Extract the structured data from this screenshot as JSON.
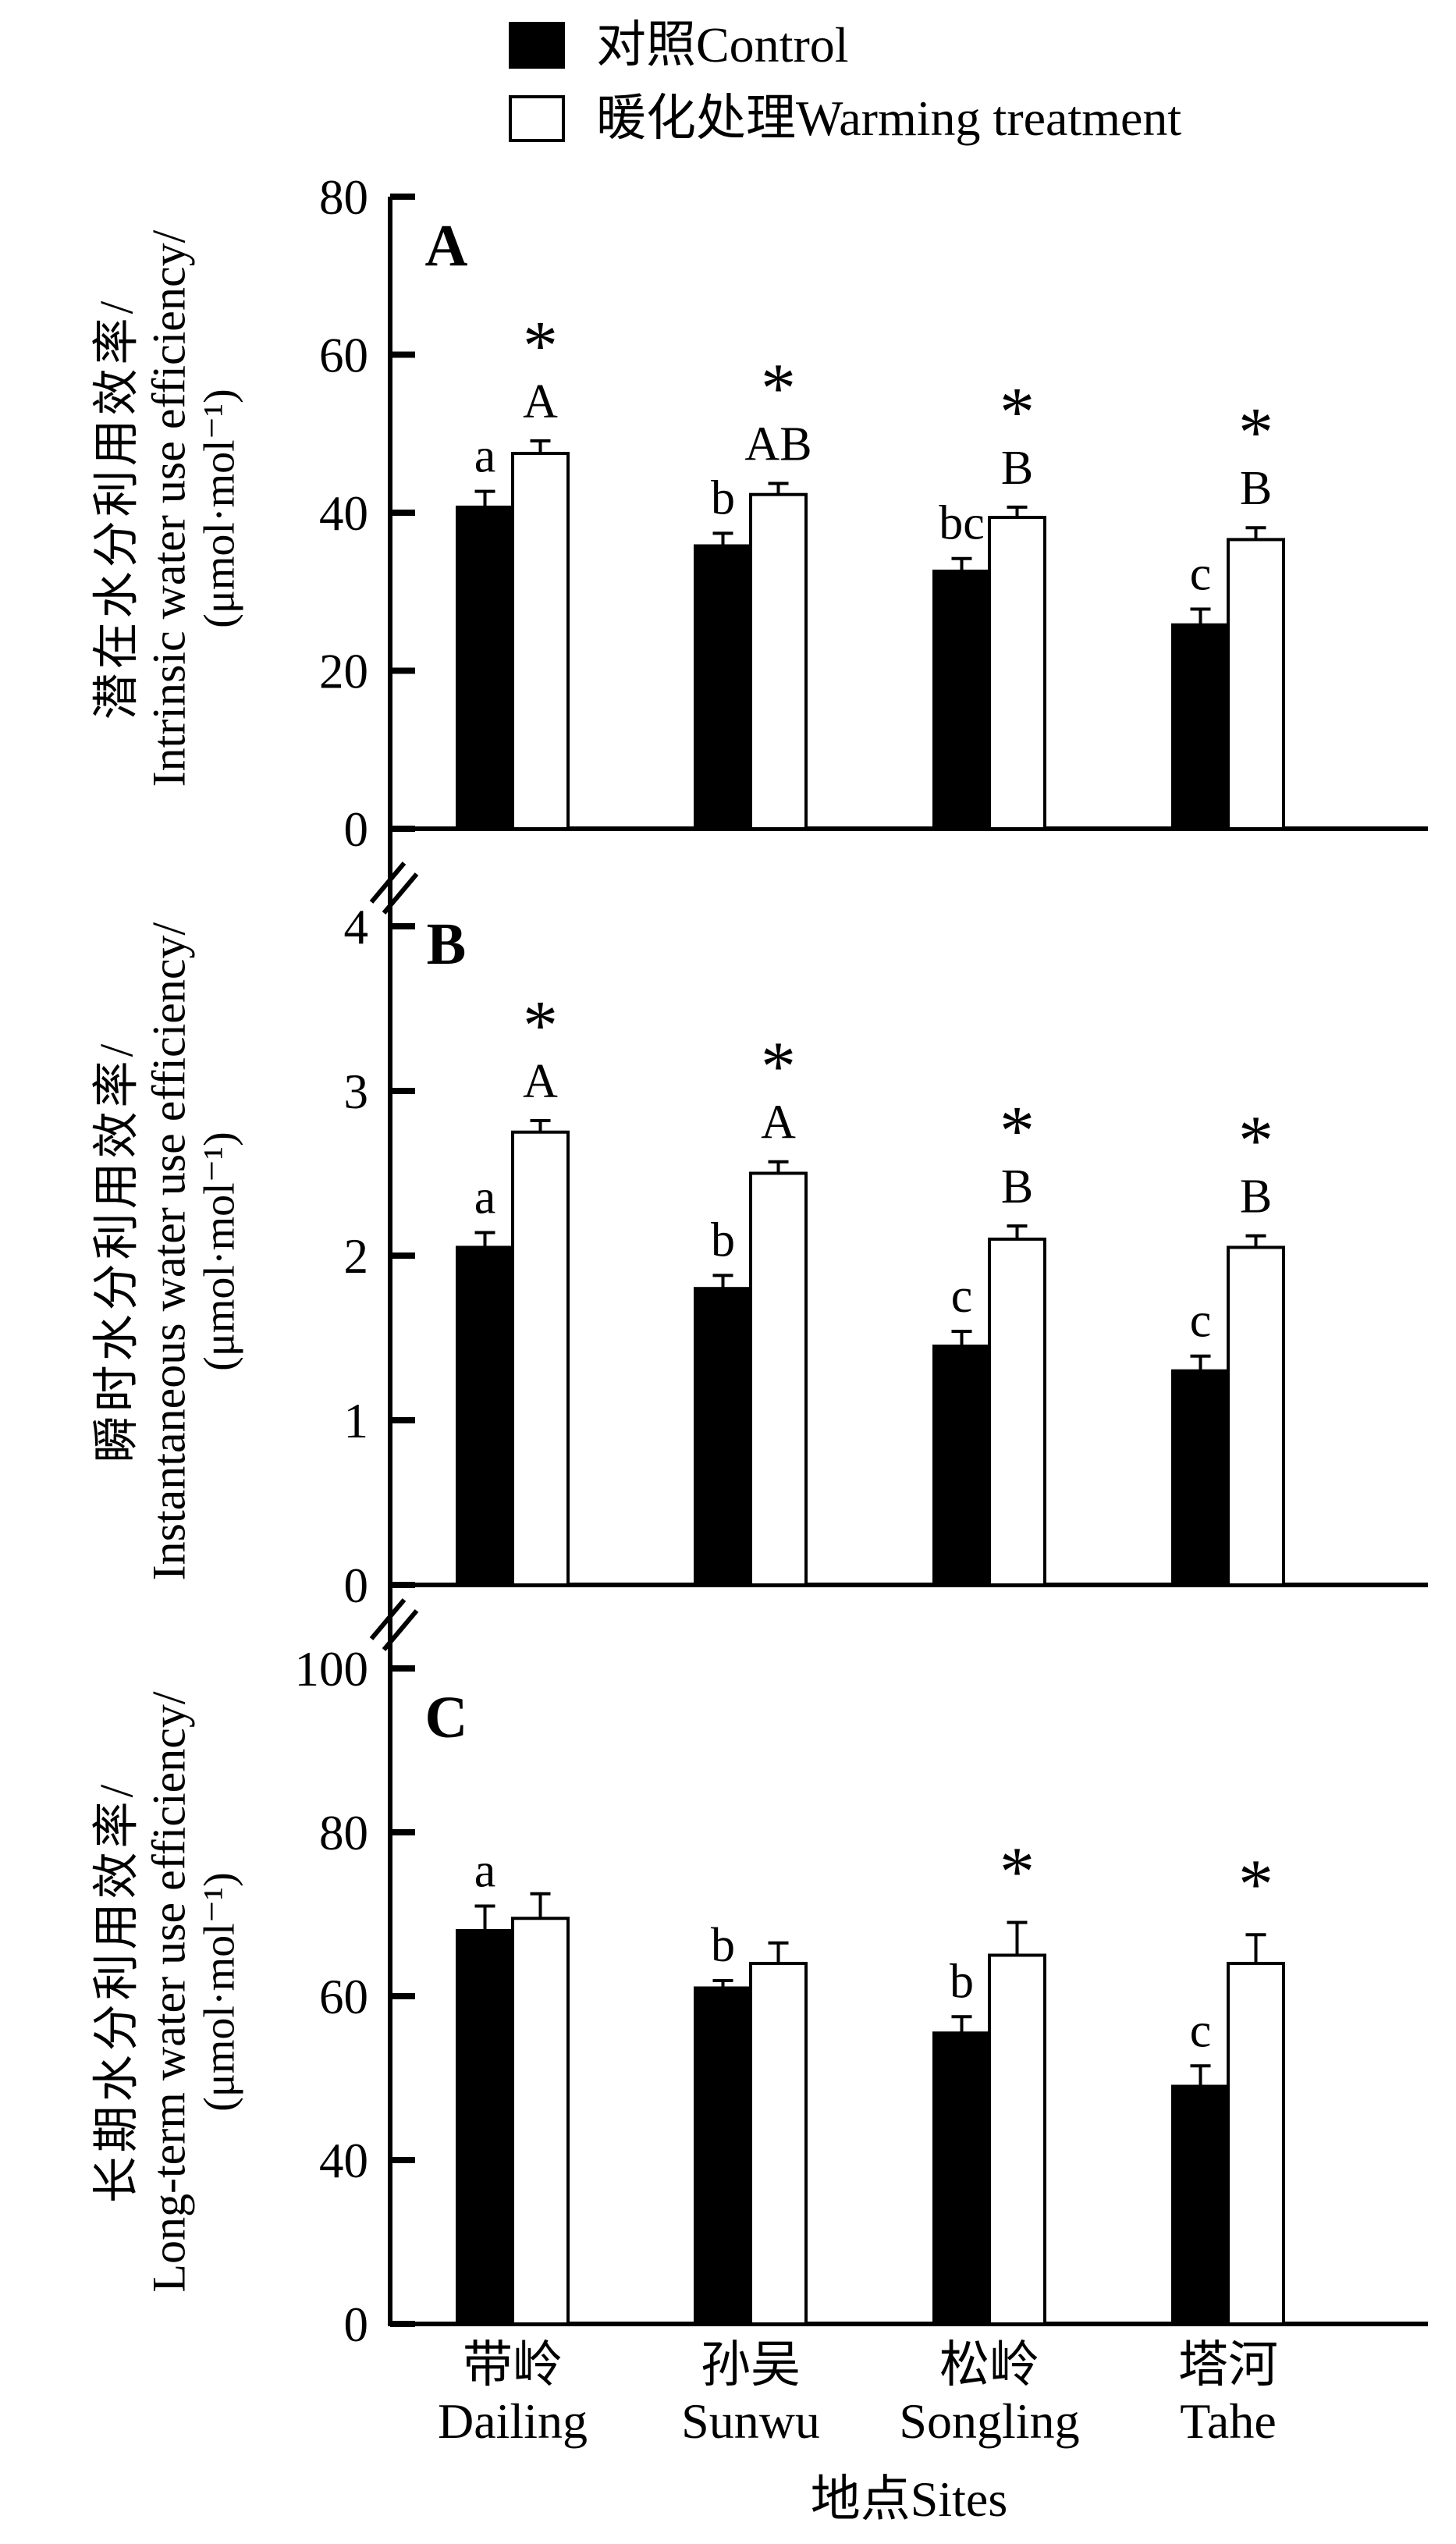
{
  "legend": {
    "items": [
      {
        "label": "对照Control",
        "swatch": "black-filled-square",
        "color": "#000000"
      },
      {
        "label": "暖化处理Warming treatment",
        "swatch": "white-open-square",
        "color": "#ffffff"
      }
    ]
  },
  "x_axis": {
    "title": "地点Sites",
    "sites": [
      {
        "zh": "带岭",
        "en": "Dailing"
      },
      {
        "zh": "孙吴",
        "en": "Sunwu"
      },
      {
        "zh": "松岭",
        "en": "Songling"
      },
      {
        "zh": "塔河",
        "en": "Tahe"
      }
    ]
  },
  "chart_data": [
    {
      "type": "bar",
      "panel_label": "A",
      "ylabel_zh": "潜在水分利用效率/",
      "ylabel_en": "Intrinsic water use efficiency/",
      "ylabel_unit": "(μmol·mol⁻¹)",
      "categories": [
        "带岭 Dailing",
        "孙吴 Sunwu",
        "松岭 Songling",
        "塔河 Tahe"
      ],
      "yticks": [
        0,
        20,
        40,
        60,
        80
      ],
      "ylim": [
        0,
        80
      ],
      "axis_break": false,
      "grid": false,
      "series": [
        {
          "name": "对照Control",
          "values": [
            40.7,
            35.8,
            32.6,
            25.8
          ],
          "errors": [
            2.0,
            1.6,
            1.6,
            2.0
          ],
          "letters": [
            "a",
            "b",
            "bc",
            "c"
          ],
          "asterisks": [
            false,
            false,
            false,
            false
          ]
        },
        {
          "name": "暖化处理Warming treatment",
          "values": [
            47.5,
            42.3,
            39.4,
            36.6
          ],
          "errors": [
            1.6,
            1.4,
            1.3,
            1.5
          ],
          "letters": [
            "A",
            "AB",
            "B",
            "B"
          ],
          "asterisks": [
            true,
            true,
            true,
            true
          ]
        }
      ]
    },
    {
      "type": "bar",
      "panel_label": "B",
      "ylabel_zh": "瞬时水分利用效率/",
      "ylabel_en": "Instantaneous water use efficiency/",
      "ylabel_unit": "(μmol·mol⁻¹)",
      "categories": [
        "带岭 Dailing",
        "孙吴 Sunwu",
        "松岭 Songling",
        "塔河 Tahe"
      ],
      "yticks": [
        0,
        1,
        2,
        3,
        4
      ],
      "ylim": [
        0,
        4
      ],
      "axis_break": true,
      "grid": false,
      "series": [
        {
          "name": "对照Control",
          "values": [
            2.05,
            1.8,
            1.45,
            1.3
          ],
          "errors": [
            0.09,
            0.08,
            0.09,
            0.09
          ],
          "letters": [
            "a",
            "b",
            "c",
            "c"
          ],
          "asterisks": [
            false,
            false,
            false,
            false
          ]
        },
        {
          "name": "暖化处理Warming treatment",
          "values": [
            2.75,
            2.5,
            2.1,
            2.05
          ],
          "errors": [
            0.07,
            0.07,
            0.08,
            0.07
          ],
          "letters": [
            "A",
            "A",
            "B",
            "B"
          ],
          "asterisks": [
            true,
            true,
            true,
            true
          ]
        }
      ]
    },
    {
      "type": "bar",
      "panel_label": "C",
      "ylabel_zh": "长期水分利用效率/",
      "ylabel_en": "Long-term water use efficiency/",
      "ylabel_unit": "(μmol·mol⁻¹)",
      "categories": [
        "带岭 Dailing",
        "孙吴 Sunwu",
        "松岭 Songling",
        "塔河 Tahe"
      ],
      "yticks": [
        0,
        40,
        60,
        80,
        100
      ],
      "ylim": [
        0,
        100
      ],
      "y_scale_note": "bottom segment 0-40 compressed (broken axis)",
      "axis_break": true,
      "grid": false,
      "series": [
        {
          "name": "对照Control",
          "values": [
            68,
            61,
            55.5,
            49
          ],
          "errors": [
            3.0,
            0.9,
            2.0,
            2.5
          ],
          "letters": [
            "a",
            "b",
            "b",
            "c"
          ],
          "asterisks": [
            false,
            false,
            false,
            false
          ]
        },
        {
          "name": "暖化处理Warming treatment",
          "values": [
            69.5,
            64,
            65,
            64
          ],
          "errors": [
            3.0,
            2.5,
            4.0,
            3.5
          ],
          "letters": [
            "",
            "",
            "",
            ""
          ],
          "asterisks": [
            false,
            false,
            true,
            true
          ]
        }
      ]
    }
  ]
}
